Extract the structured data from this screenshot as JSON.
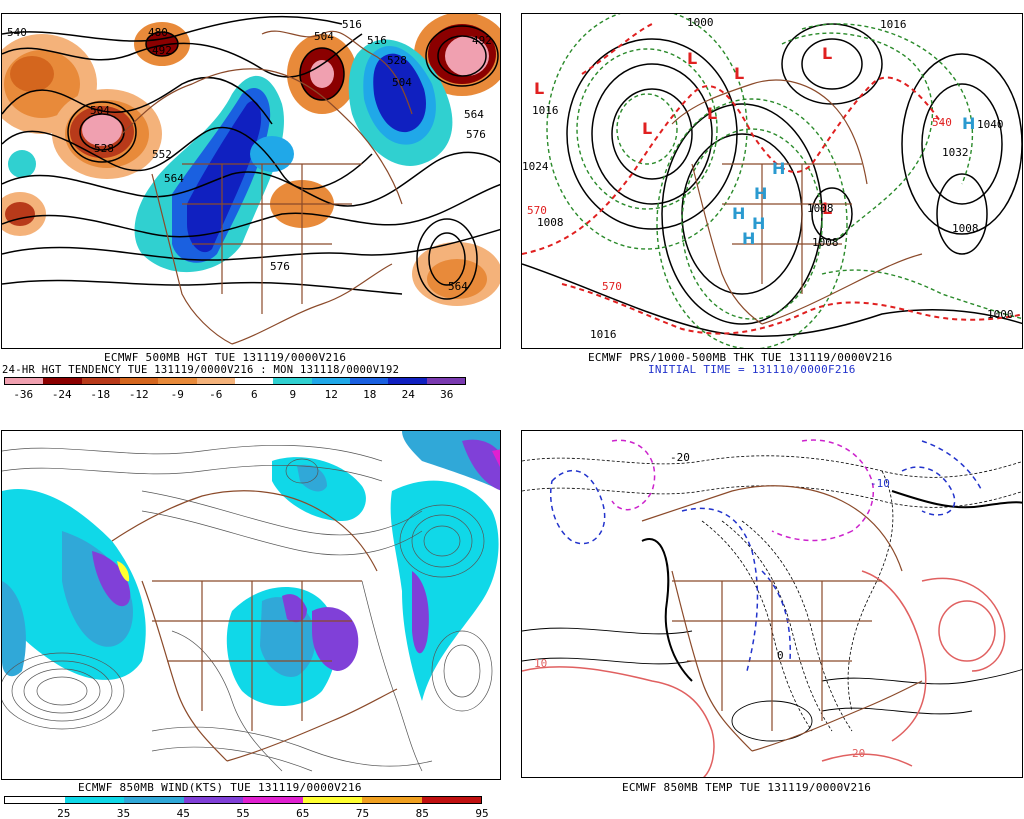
{
  "panels": {
    "p500": {
      "title1": "ECMWF 500MB HGT TUE 131119/0000V216",
      "title2": "24-HR HGT TENDENCY TUE 131119/0000V216 : MON 131118/0000V192",
      "colorbar_labels": [
        "-36",
        "-24",
        "-18",
        "-12",
        "-9",
        "-6",
        "6",
        "9",
        "12",
        "18",
        "24",
        "36"
      ],
      "colorbar_colors": [
        "#f0a0b0",
        "#8b0000",
        "#b83a1a",
        "#d4661e",
        "#e88a3a",
        "#f4b27a",
        "#ffffff",
        "#30d0d0",
        "#20a8e8",
        "#1a60e0",
        "#1020c0",
        "#7a3ab0"
      ],
      "contour_labels": [
        "540",
        "516",
        "504",
        "492",
        "480",
        "504",
        "528",
        "552",
        "564",
        "576",
        "564",
        "516",
        "528",
        "504",
        "492",
        "576",
        "564"
      ]
    },
    "pmsl": {
      "title1": "ECMWF PRS/1000-500MB THK TUE 131119/0000V216",
      "title2": "INITIAL TIME = 131110/0000F216",
      "isobar_labels": [
        "1000",
        "1008",
        "1016",
        "1016",
        "1008",
        "1040",
        "1032",
        "1008",
        "1016",
        "1024",
        "1008",
        "1000"
      ],
      "thickness_labels": [
        "570",
        "540",
        "570"
      ],
      "lows": [
        "L",
        "L",
        "L",
        "L",
        "L",
        "L",
        "L"
      ],
      "highs": [
        "H",
        "H",
        "H",
        "H",
        "H",
        "H"
      ]
    },
    "p850w": {
      "title1": "ECMWF 850MB WIND(KTS) TUE 131119/0000V216",
      "colorbar_labels": [
        "25",
        "35",
        "45",
        "55",
        "65",
        "75",
        "85",
        "95"
      ],
      "colorbar_colors": [
        "#ffffff",
        "#10d8e8",
        "#30a8d8",
        "#8040d8",
        "#e020d0",
        "#ffff30",
        "#f0a020",
        "#c01010"
      ]
    },
    "p850t": {
      "title1": "ECMWF 850MB TEMP TUE 131119/0000V216",
      "temp_labels": [
        "-20",
        "-10",
        "0",
        "10",
        "20"
      ]
    }
  },
  "colors": {
    "coast": "#8b4a2a",
    "height_contour": "#000000",
    "thickness": "#e02020",
    "isobar_green": "#2a8a2a",
    "temp_neg": "#2233cc",
    "temp_zero": "#000000",
    "temp_pos": "#e06060",
    "temp_cold": "#cc22cc"
  }
}
